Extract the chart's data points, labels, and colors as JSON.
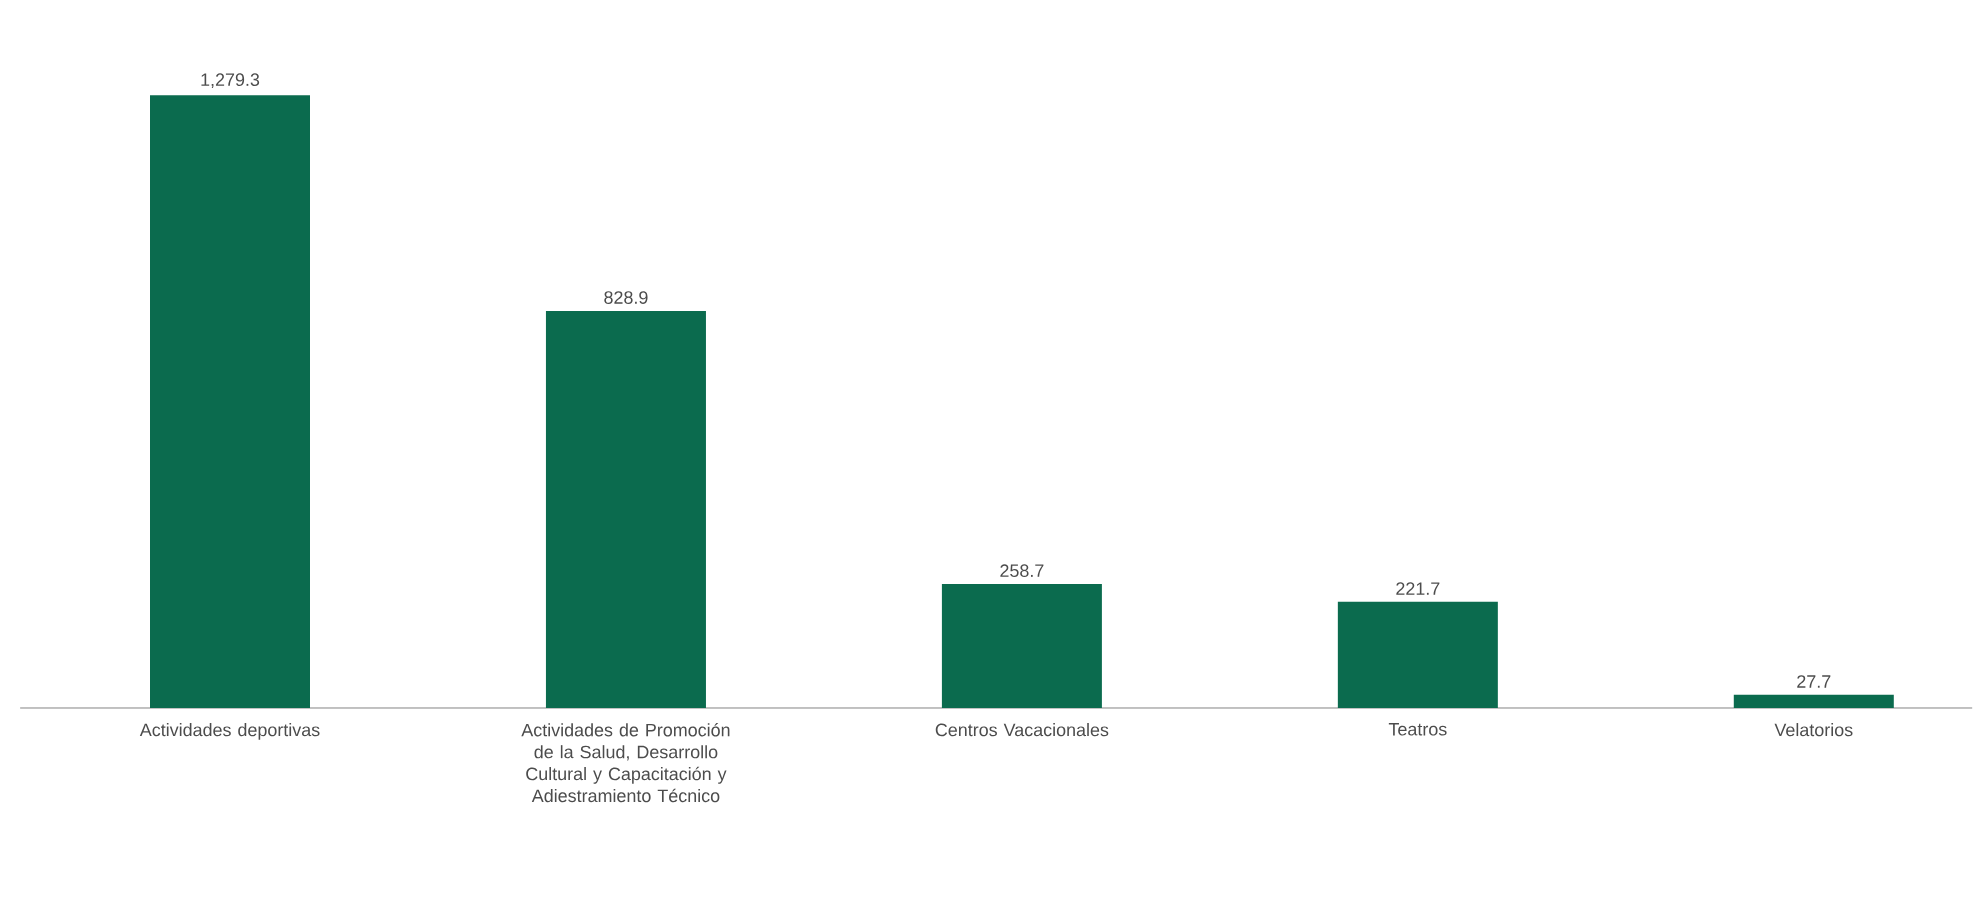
{
  "chart_data": {
    "type": "bar",
    "categories": [
      "Actividades deportivas",
      "Actividades de Promoción de la Salud, Desarrollo Cultural y Capacitación y Adiestramiento Técnico",
      "Centros Vacacionales",
      "Teatros",
      "Velatorios"
    ],
    "values": [
      1279.3,
      828.9,
      258.7,
      221.7,
      27.7
    ],
    "value_labels": [
      "1,279.3",
      "828.9",
      "258.7",
      "221.7",
      "27.7"
    ],
    "color": "#0b6b4e"
  }
}
